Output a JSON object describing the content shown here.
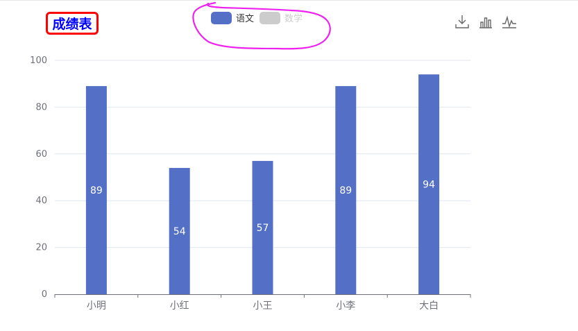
{
  "title": "成绩表",
  "legend": [
    {
      "name": "语文",
      "color": "#5470c6",
      "active": true
    },
    {
      "name": "数学",
      "color": "#cccccc",
      "active": false
    }
  ],
  "toolbox": [
    {
      "icon": "download-icon"
    },
    {
      "icon": "bar-chart-icon"
    },
    {
      "icon": "line-chart-icon"
    }
  ],
  "colors": {
    "bar": "#5470c6",
    "annotation": "#ee22ee",
    "title_border": "#ff0000",
    "title_text": "#0000ff"
  },
  "chart_data": {
    "type": "bar",
    "categories": [
      "小明",
      "小红",
      "小王",
      "小李",
      "大白"
    ],
    "series": [
      {
        "name": "语文",
        "values": [
          89,
          54,
          57,
          89,
          94
        ]
      }
    ],
    "ylim": [
      0,
      100
    ],
    "yticks": [
      0,
      20,
      40,
      60,
      80,
      100
    ],
    "grid": true,
    "legend_position": "top-center",
    "data_labels": true
  }
}
